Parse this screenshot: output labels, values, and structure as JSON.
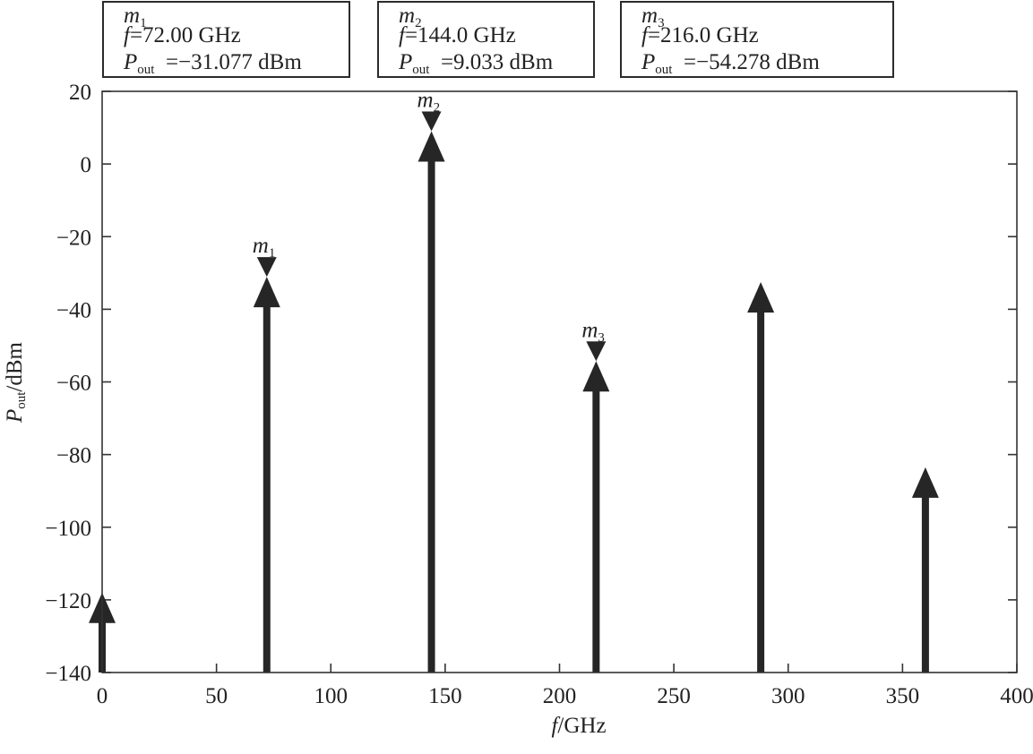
{
  "chart_data": {
    "type": "stem",
    "xlabel": {
      "var": "f",
      "unit": "/GHz"
    },
    "ylabel": {
      "var": "P",
      "sub": "out",
      "unit": "/dBm"
    },
    "xlim": [
      0,
      400
    ],
    "ylim": [
      -140,
      20
    ],
    "xticks": [
      0,
      50,
      100,
      150,
      200,
      250,
      300,
      350,
      400
    ],
    "yticks": [
      20,
      0,
      -20,
      -40,
      -60,
      -80,
      -100,
      -120,
      -140
    ],
    "points": [
      {
        "x": 0,
        "y": -118
      },
      {
        "x": 72,
        "y": -31.077
      },
      {
        "x": 144,
        "y": 9.033
      },
      {
        "x": 216,
        "y": -54.278
      },
      {
        "x": 288,
        "y": -32.5
      },
      {
        "x": 360,
        "y": -83.5
      }
    ],
    "markers": [
      {
        "name": "m",
        "index": "1",
        "x": 72,
        "y": -31.077,
        "line1": "=72.00 GHz",
        "line2": "=−31.077 dBm"
      },
      {
        "name": "m",
        "index": "2",
        "x": 144,
        "y": 9.033,
        "line1": "=144.0 GHz",
        "line2": "=9.033 dBm"
      },
      {
        "name": "m",
        "index": "3",
        "x": 216,
        "y": -54.278,
        "line1": "=216.0 GHz",
        "line2": "=−54.278 dBm"
      }
    ],
    "grid": false
  },
  "labels": {
    "f": "f",
    "P": "P",
    "out": "out"
  }
}
